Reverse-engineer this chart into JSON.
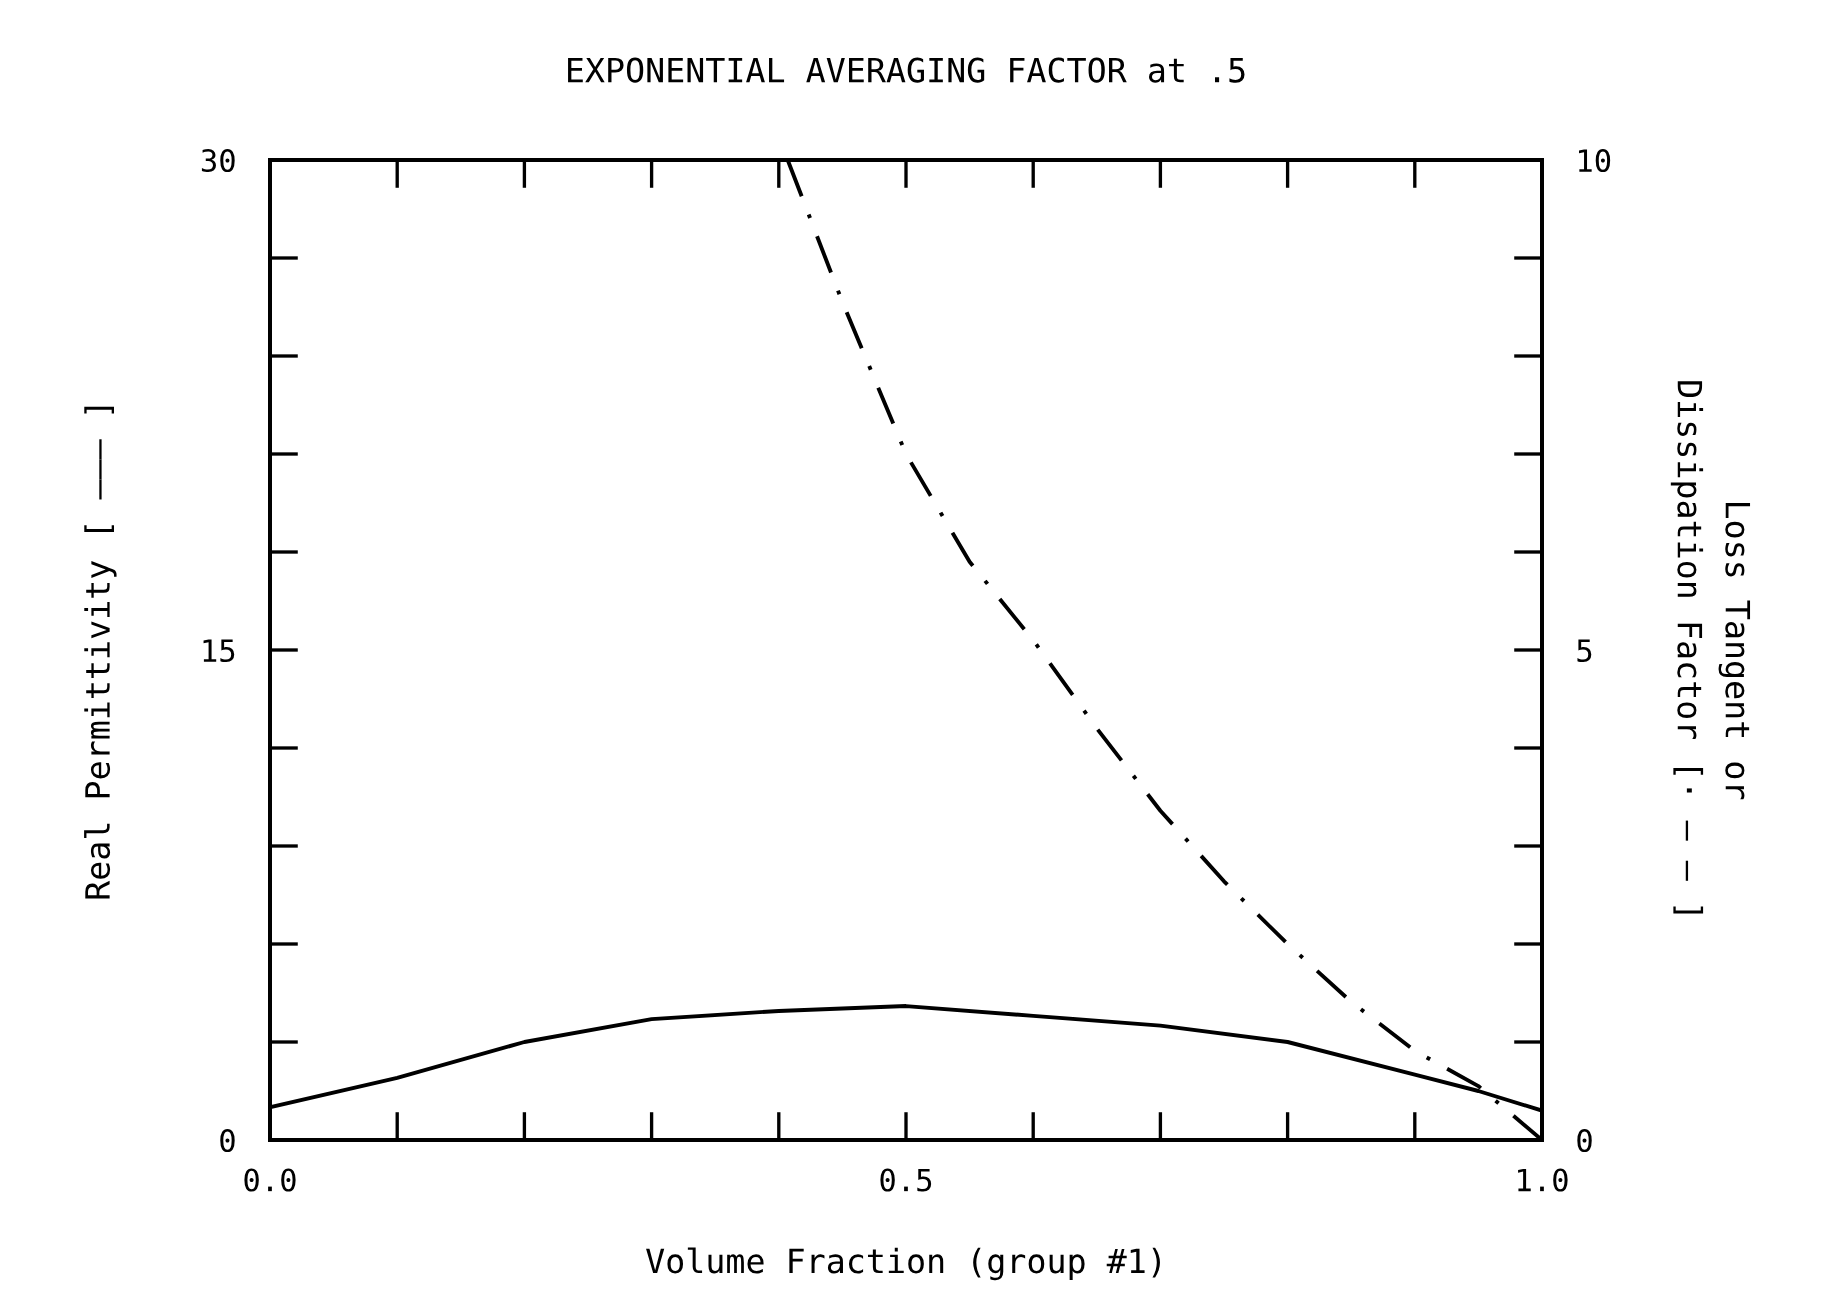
{
  "chart_data": {
    "type": "line",
    "title": "EXPONENTIAL AVERAGING FACTOR at .5",
    "xlabel": "Volume Fraction (group #1)",
    "ylabel": "Real Permittivity [ ——— ]",
    "y2label": "Loss Tangent or\nDissipation Factor [· — — ]",
    "xlim": [
      0,
      1
    ],
    "ylim": [
      0,
      30
    ],
    "y2lim": [
      0,
      10
    ],
    "xticks": [
      {
        "value": 0,
        "label": "0.0"
      },
      {
        "value": 0.1,
        "label": null
      },
      {
        "value": 0.2,
        "label": null
      },
      {
        "value": 0.3,
        "label": null
      },
      {
        "value": 0.4,
        "label": null
      },
      {
        "value": 0.5,
        "label": "0.5"
      },
      {
        "value": 0.6,
        "label": null
      },
      {
        "value": 0.7,
        "label": null
      },
      {
        "value": 0.8,
        "label": null
      },
      {
        "value": 0.9,
        "label": null
      },
      {
        "value": 1,
        "label": "1.0"
      }
    ],
    "yticks": [
      0,
      {
        "value": 3,
        "label": null
      },
      {
        "value": 6,
        "label": null
      },
      {
        "value": 9,
        "label": null
      },
      {
        "value": 12,
        "label": null
      },
      15,
      {
        "value": 18,
        "label": null
      },
      {
        "value": 21,
        "label": null
      },
      {
        "value": 24,
        "label": null
      },
      {
        "value": 27,
        "label": null
      },
      30
    ],
    "y2ticks": [
      0,
      {
        "value": 1,
        "label": null
      },
      {
        "value": 2,
        "label": null
      },
      {
        "value": 3,
        "label": null
      },
      {
        "value": 4,
        "label": null
      },
      5,
      {
        "value": 6,
        "label": null
      },
      {
        "value": 7,
        "label": null
      },
      {
        "value": 8,
        "label": null
      },
      {
        "value": 9,
        "label": null
      },
      10
    ],
    "grid": false,
    "legend": false,
    "series": [
      {
        "color": "#000000",
        "line_style": "solid",
        "x": [
          0,
          0.1,
          0.2,
          0.3,
          0.4,
          0.5,
          0.6,
          0.7,
          0.8,
          0.9,
          0.95,
          1
        ],
        "values": [
          1.0,
          1.9,
          3.0,
          3.7,
          3.95,
          4.1,
          3.8,
          3.5,
          3.0,
          2.0,
          1.5,
          0.9
        ]
      },
      {
        "color": "#000000",
        "line_style": "dashed",
        "axis": "y2",
        "x": [
          0.407,
          0.45,
          0.5,
          0.55,
          0.6,
          0.65,
          0.7,
          0.75,
          0.8,
          0.85,
          0.9,
          0.95,
          1
        ],
        "values": [
          10,
          8.55,
          7.0,
          5.9,
          5.1,
          4.2,
          3.36,
          2.64,
          2.0,
          1.41,
          0.91,
          0.55,
          0
        ]
      }
    ]
  }
}
